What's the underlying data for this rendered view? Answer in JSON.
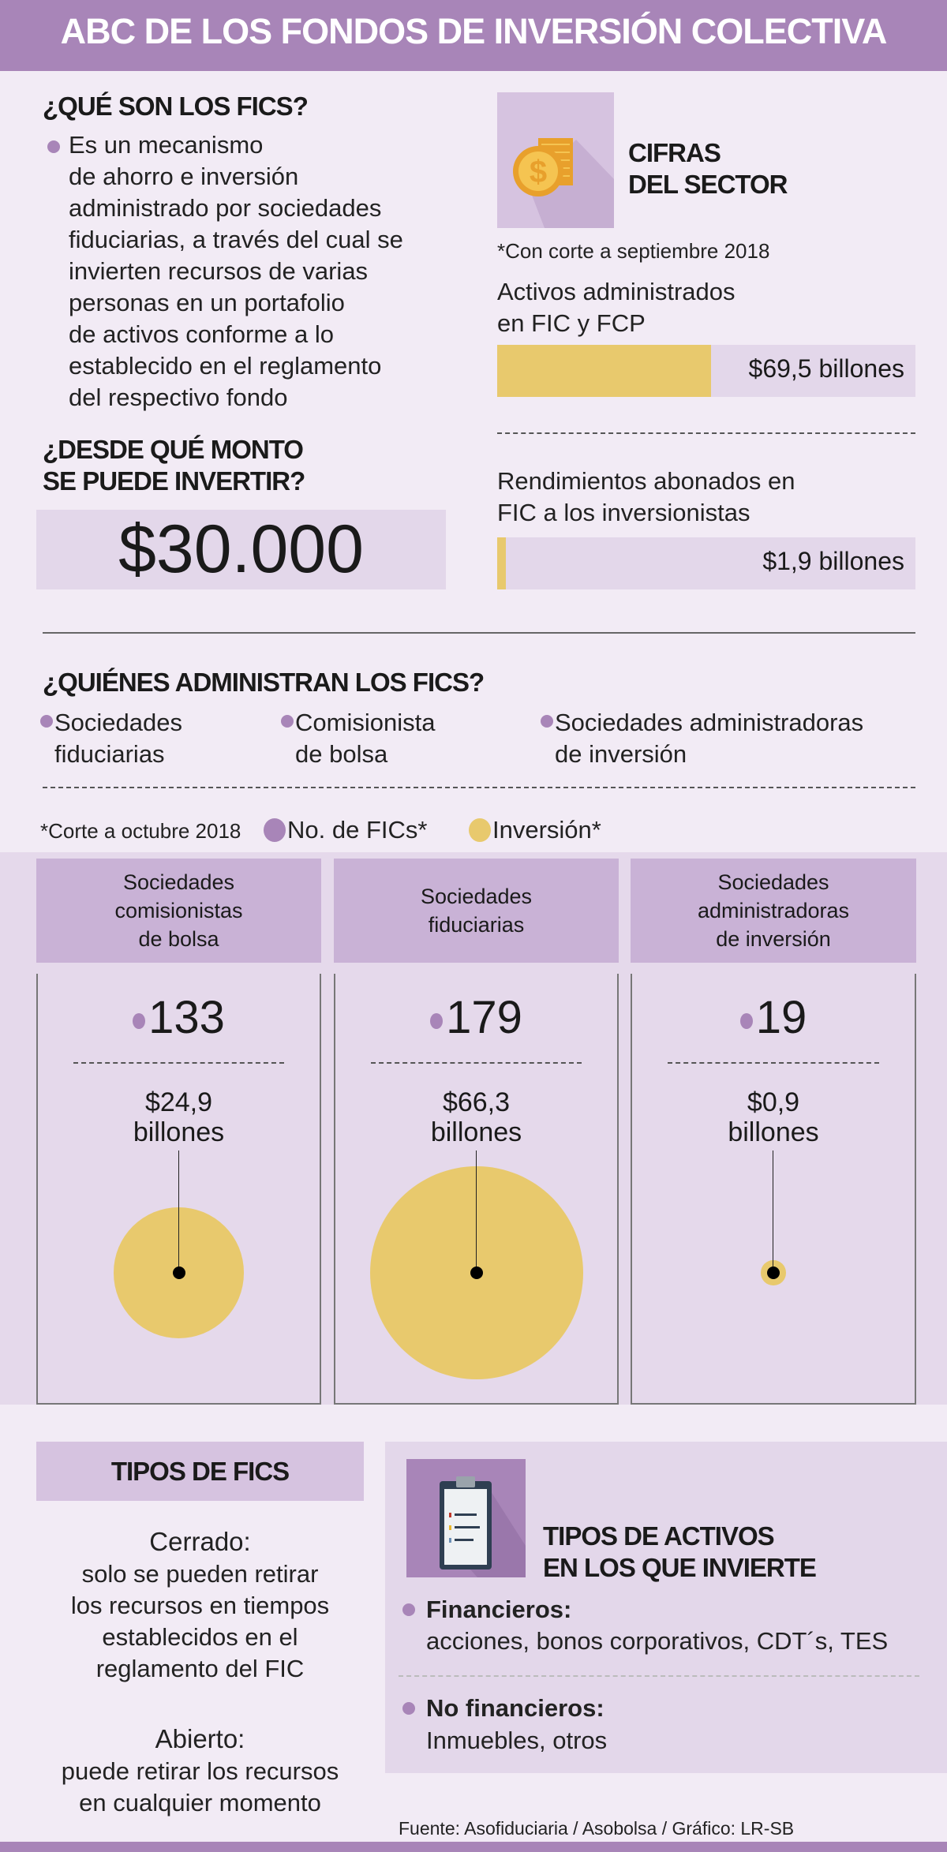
{
  "title": "ABC DE LOS FONDOS DE INVERSIÓN COLECTIVA",
  "que_son": {
    "heading": "¿QUÉ SON LOS FICS?",
    "lines": [
      "Es un mecanismo",
      "de ahorro e inversión",
      "administrado por sociedades",
      "fiduciarias, a través del cual se",
      "invierten recursos de varias",
      "personas en un portafolio",
      "de activos conforme a lo",
      "establecido en el reglamento",
      "del respectivo fondo"
    ]
  },
  "monto": {
    "heading_lines": [
      "¿DESDE QUÉ MONTO",
      "SE PUEDE INVERTIR?"
    ],
    "value": "$30.000"
  },
  "cifras": {
    "icon": "coins-dollar-icon",
    "heading_lines": [
      "CIFRAS",
      "DEL SECTOR"
    ],
    "note": "*Con corte a septiembre 2018",
    "items": [
      {
        "label_lines": [
          "Activos administrados",
          "en FIC y FCP"
        ],
        "value_label": "$69,5 billones",
        "value": 69.5
      },
      {
        "label_lines": [
          "Rendimientos abonados en",
          "FIC a los inversionistas"
        ],
        "value_label": "$1,9 billones",
        "value": 1.9
      }
    ]
  },
  "quienes": {
    "heading": "¿QUIÉNES ADMINISTRAN LOS FICS?",
    "items": [
      {
        "lines": [
          "Sociedades",
          "fiduciarias"
        ]
      },
      {
        "lines": [
          "Comisionista",
          "de bolsa"
        ]
      },
      {
        "lines": [
          "Sociedades administradoras",
          "de inversión"
        ]
      }
    ]
  },
  "legend": {
    "note": "*Corte a octubre 2018",
    "count_label": "No. de FICs*",
    "investment_label": "Inversión*"
  },
  "colors": {
    "purple": "#a885b8",
    "yellow": "#e8c96d",
    "header": "#a885b8"
  },
  "chart_data": {
    "type": "bubble",
    "categories": [
      [
        "Sociedades",
        "comisionistas",
        "de bolsa"
      ],
      [
        "Sociedades",
        "fiduciarias"
      ],
      [
        "Sociedades",
        "administradoras",
        "de inversión"
      ]
    ],
    "series": [
      {
        "name": "No. de FICs*",
        "values": [
          133,
          179,
          19
        ],
        "labels": [
          "133",
          "179",
          "19"
        ]
      },
      {
        "name": "Inversión*",
        "values": [
          24.9,
          66.3,
          0.9
        ],
        "labels": [
          "$24,9",
          "$66,3",
          "$0,9"
        ],
        "unit": "billones"
      }
    ]
  },
  "tipos_fics": {
    "heading": "TIPOS DE FICS",
    "items": [
      {
        "title": "Cerrado:",
        "lines": [
          "solo se pueden retirar",
          "los recursos en tiempos",
          "establecidos en el",
          "reglamento del FIC"
        ]
      },
      {
        "title": "Abierto:",
        "lines": [
          "puede retirar los recursos",
          "en cualquier momento"
        ]
      }
    ]
  },
  "tipos_activos": {
    "icon": "clipboard-list-icon",
    "heading_lines": [
      "TIPOS DE ACTIVOS",
      "EN LOS QUE INVIERTE"
    ],
    "items": [
      {
        "title": "Financieros:",
        "desc": "acciones, bonos corporativos, CDT´s, TES"
      },
      {
        "title": "No financieros:",
        "desc": "Inmuebles, otros"
      }
    ]
  },
  "source": "Fuente: Asofiduciaria / Asobolsa / Gráfico: LR-SB"
}
